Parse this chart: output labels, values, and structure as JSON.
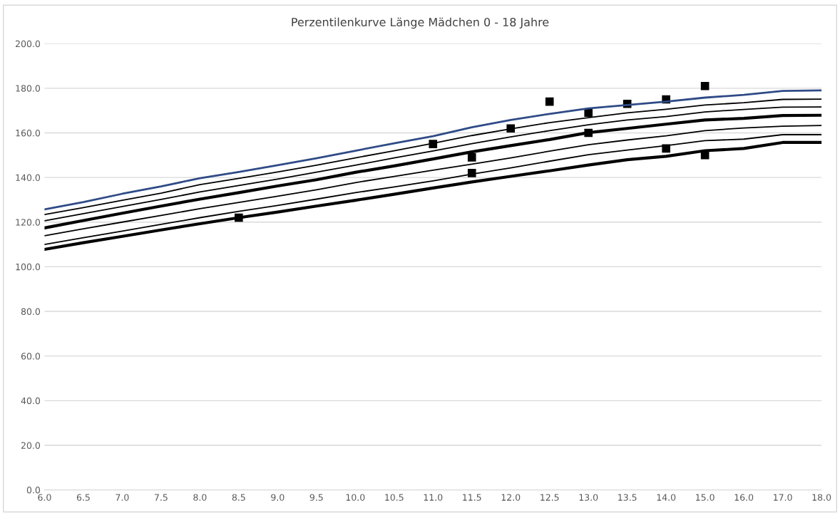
{
  "chart_data": {
    "type": "line",
    "title": "Perzentilenkurve Länge Mädchen 0 - 18 Jahre",
    "categories": [
      "6.0",
      "6.5",
      "7.0",
      "7.5",
      "8.0",
      "8.5",
      "9.0",
      "9.5",
      "10.0",
      "10.5",
      "11.0",
      "11.5",
      "12.0",
      "12.5",
      "13.0",
      "13.5",
      "14.0",
      "15.0",
      "16.0",
      "17.0",
      "18.0"
    ],
    "series": [
      {
        "color": "#2f4b87",
        "values": [
          125.7,
          129,
          132.7,
          136,
          139.7,
          142.5,
          145.5,
          148.6,
          152,
          155.3,
          158.5,
          162.5,
          165.8,
          168.5,
          171,
          172.5,
          174,
          175.8,
          177,
          178.8,
          179
        ]
      },
      {
        "color": "#000000",
        "values": [
          123.4,
          126.5,
          129.8,
          133,
          136.8,
          139.6,
          142.5,
          145.5,
          148.8,
          152,
          155.3,
          158.8,
          161.8,
          164.6,
          166.8,
          169,
          170.6,
          172.5,
          173.5,
          175,
          175.1
        ]
      },
      {
        "color": "#000000",
        "values": [
          120.6,
          123.8,
          127,
          130.2,
          133.5,
          136.4,
          139.3,
          142.4,
          145.5,
          148.8,
          151.9,
          155.2,
          158.2,
          161,
          163.6,
          165.8,
          167.3,
          169.4,
          170.5,
          171.5,
          171.6
        ]
      },
      {
        "color": "#000000",
        "values": [
          117.4,
          120.7,
          124,
          127.2,
          130.3,
          133.2,
          136.2,
          139,
          142.3,
          145.2,
          148.3,
          151.5,
          154.3,
          157,
          160.1,
          162,
          163.9,
          165.8,
          166.5,
          167.8,
          167.9
        ]
      },
      {
        "color": "#000000",
        "values": [
          113.9,
          117,
          120,
          123,
          126,
          128.8,
          131.6,
          134.5,
          137.7,
          140.5,
          143.3,
          146,
          148.8,
          151.8,
          154.7,
          156.8,
          158.7,
          161,
          162.2,
          163,
          163.3
        ]
      },
      {
        "color": "#000000",
        "values": [
          110,
          113,
          116,
          119,
          122,
          124.8,
          127.5,
          130.3,
          133.2,
          135.8,
          138.5,
          141.5,
          144.3,
          147.3,
          150.2,
          152.3,
          154.3,
          156.5,
          157.2,
          159.2,
          159.2
        ]
      },
      {
        "color": "#000000",
        "values": [
          107.8,
          110.8,
          113.6,
          116.5,
          119.3,
          122,
          124.5,
          127.2,
          129.8,
          132.5,
          135.3,
          138,
          140.5,
          143,
          145.6,
          148,
          149.5,
          152,
          153,
          155.7,
          155.7
        ]
      },
      {
        "type": "scatter",
        "marker": "square",
        "color": "#000000",
        "x": [
          "8.5",
          "11.0",
          "11.5",
          "11.5",
          "12.0",
          "12.5",
          "13.0",
          "13.0",
          "13.5",
          "14.0",
          "14.0",
          "15.0",
          "15.0"
        ],
        "values": [
          122,
          155,
          149,
          142,
          162,
          174,
          169,
          160,
          173,
          175,
          153,
          181,
          150
        ]
      }
    ],
    "ylim": [
      0,
      200
    ],
    "yticks": [
      {
        "value": 0,
        "label": "0.0"
      },
      {
        "value": 20,
        "label": "20.0"
      },
      {
        "value": 40,
        "label": "40.0"
      },
      {
        "value": 60,
        "label": "60.0"
      },
      {
        "value": 80,
        "label": "80.0"
      },
      {
        "value": 100,
        "label": "100.0"
      },
      {
        "value": 120,
        "label": "120.0"
      },
      {
        "value": 140,
        "label": "140.0"
      },
      {
        "value": 160,
        "label": "160.0"
      },
      {
        "value": 180,
        "label": "180.0"
      },
      {
        "value": 200,
        "label": "200.0"
      }
    ],
    "grid": "y"
  }
}
